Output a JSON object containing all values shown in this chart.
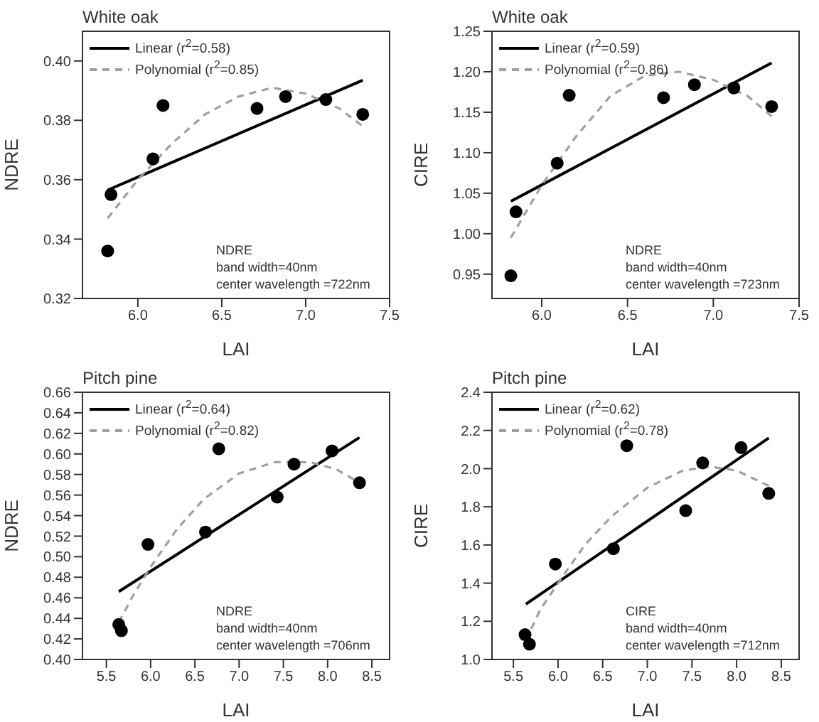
{
  "chart_data": [
    {
      "type": "scatter",
      "title": "White oak",
      "xlabel": "LAI",
      "ylabel": "NDRE",
      "xlim": [
        5.67,
        7.5
      ],
      "ylim": [
        0.32,
        0.41
      ],
      "xticks": [
        {
          "value": 6,
          "label": "6.0"
        },
        6.5,
        {
          "value": 7,
          "label": "7.0"
        },
        7.5
      ],
      "yticks": [
        0.32,
        0.34,
        0.36,
        0.38,
        {
          "value": 0.4,
          "label": "0.40"
        }
      ],
      "grid": false,
      "legend": "top left",
      "annotations": [
        "NDRE",
        "band width=40nm",
        "center wavelength =722nm"
      ],
      "series": [
        {
          "color": "#000000",
          "marker": "circle",
          "x": [
            5.82,
            5.84,
            6.09,
            6.15,
            6.71,
            6.88,
            7.12,
            7.34
          ],
          "values": [
            0.336,
            0.355,
            0.367,
            0.385,
            0.384,
            0.388,
            0.387,
            0.382
          ]
        },
        {
          "type": "line",
          "name": "Linear (r$^{2}$=0.58)",
          "color": "#000000",
          "line_style": "solid",
          "marker": "none",
          "x": [
            5.82,
            7.34
          ],
          "values": [
            0.3565,
            0.3935
          ]
        },
        {
          "type": "line",
          "name": "Polynomial (r$^{2}$=0.85)",
          "color": "#a0a0a0",
          "line_style": "dashed",
          "marker": "none",
          "x": [
            5.82,
            6.0,
            6.2,
            6.4,
            6.6,
            6.8,
            7.0,
            7.2,
            7.34
          ],
          "values": [
            0.347,
            0.36,
            0.372,
            0.382,
            0.388,
            0.391,
            0.389,
            0.384,
            0.378
          ]
        }
      ]
    },
    {
      "type": "scatter",
      "title": "White oak",
      "xlabel": "LAI",
      "ylabel": "CIRE",
      "xlim": [
        5.71,
        7.5
      ],
      "ylim": [
        0.92,
        1.25
      ],
      "xticks": [
        {
          "value": 6,
          "label": "6.0"
        },
        6.5,
        {
          "value": 7,
          "label": "7.0"
        },
        7.5
      ],
      "yticks": [
        0.95,
        {
          "value": 1,
          "label": "1.00"
        },
        1.05,
        {
          "value": 1.1,
          "label": "1.10"
        },
        1.15,
        {
          "value": 1.2,
          "label": "1.20"
        },
        1.25
      ],
      "grid": false,
      "legend": "top left",
      "annotations": [
        "NDRE",
        "band width=40nm",
        "center wavelength =723nm"
      ],
      "series": [
        {
          "color": "#000000",
          "marker": "circle",
          "x": [
            5.82,
            5.85,
            6.09,
            6.16,
            6.71,
            6.89,
            7.12,
            7.34
          ],
          "values": [
            0.948,
            1.027,
            1.087,
            1.171,
            1.168,
            1.184,
            1.18,
            1.157
          ]
        },
        {
          "type": "line",
          "name": "Linear (r$^{2}$=0.59)",
          "color": "#000000",
          "line_style": "solid",
          "marker": "none",
          "x": [
            5.82,
            7.34
          ],
          "values": [
            1.04,
            1.211
          ]
        },
        {
          "type": "line",
          "name": "Polynomial (r$^{2}$=0.86)",
          "color": "#a0a0a0",
          "line_style": "dashed",
          "marker": "none",
          "x": [
            5.82,
            6.0,
            6.2,
            6.4,
            6.6,
            6.8,
            7.0,
            7.2,
            7.34
          ],
          "values": [
            0.995,
            1.06,
            1.12,
            1.17,
            1.195,
            1.2,
            1.19,
            1.17,
            1.145
          ]
        }
      ]
    },
    {
      "type": "scatter",
      "title": "Pitch pine",
      "xlabel": "LAI",
      "ylabel": "NDRE",
      "xlim": [
        5.23,
        8.7
      ],
      "ylim": [
        0.4,
        0.66
      ],
      "xticks": [
        5.5,
        {
          "value": 6,
          "label": "6.0"
        },
        6.5,
        {
          "value": 7,
          "label": "7.0"
        },
        7.5,
        {
          "value": 8,
          "label": "8.0"
        },
        8.5
      ],
      "yticks": [
        {
          "value": 0.4,
          "label": "0.40"
        },
        0.42,
        0.44,
        0.46,
        0.48,
        {
          "value": 0.5,
          "label": "0.50"
        },
        0.52,
        0.54,
        0.56,
        0.58,
        {
          "value": 0.6,
          "label": "0.60"
        },
        0.62,
        0.64,
        0.66
      ],
      "grid": false,
      "legend": "top left",
      "annotations": [
        "NDRE",
        "band width=40nm",
        "center wavelength =706nm"
      ],
      "series": [
        {
          "color": "#000000",
          "marker": "circle",
          "x": [
            5.64,
            5.67,
            5.97,
            6.62,
            6.77,
            7.43,
            7.62,
            8.05,
            8.36
          ],
          "values": [
            0.434,
            0.428,
            0.512,
            0.524,
            0.605,
            0.558,
            0.59,
            0.603,
            0.572
          ]
        },
        {
          "type": "line",
          "name": "Linear (r$^{2}$=0.64)",
          "color": "#000000",
          "line_style": "solid",
          "marker": "none",
          "x": [
            5.64,
            8.36
          ],
          "values": [
            0.466,
            0.616
          ]
        },
        {
          "type": "line",
          "name": "Polynomial (r$^{2}$=0.82)",
          "color": "#a0a0a0",
          "line_style": "dashed",
          "marker": "none",
          "x": [
            5.64,
            5.8,
            6.0,
            6.3,
            6.6,
            7.0,
            7.4,
            7.8,
            8.1,
            8.36
          ],
          "values": [
            0.436,
            0.462,
            0.49,
            0.527,
            0.556,
            0.581,
            0.592,
            0.592,
            0.585,
            0.572
          ]
        }
      ]
    },
    {
      "type": "scatter",
      "title": "Pitch pine",
      "xlabel": "LAI",
      "ylabel": "CIRE",
      "xlim": [
        5.26,
        8.7
      ],
      "ylim": [
        1.0,
        2.4
      ],
      "xticks": [
        5.5,
        {
          "value": 6,
          "label": "6.0"
        },
        6.5,
        {
          "value": 7,
          "label": "7.0"
        },
        7.5,
        {
          "value": 8,
          "label": "8.0"
        },
        8.5
      ],
      "yticks": [
        {
          "value": 1,
          "label": "1.0"
        },
        1.2,
        1.4,
        1.6,
        1.8,
        {
          "value": 2,
          "label": "2.0"
        },
        2.2,
        2.4
      ],
      "grid": false,
      "legend": "top left",
      "annotations": [
        "CIRE",
        "band width=40nm",
        "center wavelength =712nm"
      ],
      "series": [
        {
          "color": "#000000",
          "marker": "circle",
          "x": [
            5.63,
            5.68,
            5.97,
            6.62,
            6.77,
            7.43,
            7.62,
            8.05,
            8.36
          ],
          "values": [
            1.13,
            1.08,
            1.5,
            1.58,
            2.12,
            1.78,
            2.03,
            2.11,
            1.87
          ]
        },
        {
          "type": "line",
          "name": "Linear (r$^{2}$=0.62)",
          "color": "#000000",
          "line_style": "solid",
          "marker": "none",
          "x": [
            5.64,
            8.36
          ],
          "values": [
            1.29,
            2.16
          ]
        },
        {
          "type": "line",
          "name": "Polynomial (r$^{2}$=0.78)",
          "color": "#a0a0a0",
          "line_style": "dashed",
          "marker": "none",
          "x": [
            5.64,
            5.8,
            6.0,
            6.3,
            6.6,
            7.0,
            7.4,
            7.7,
            8.0,
            8.36
          ],
          "values": [
            1.1,
            1.26,
            1.4,
            1.6,
            1.75,
            1.9,
            1.99,
            2.01,
            1.99,
            1.91
          ]
        }
      ]
    }
  ]
}
